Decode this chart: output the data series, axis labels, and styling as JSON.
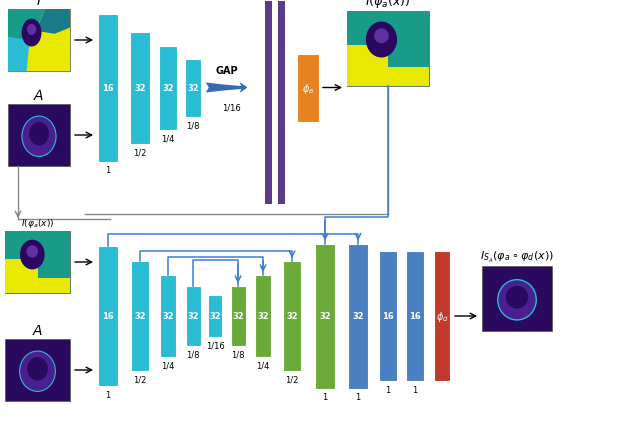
{
  "bg_color": "#ffffff",
  "cyan": "#29bcd3",
  "green": "#6aaa3a",
  "blue_dec": "#4a7fc1",
  "orange": "#e8821e",
  "purple_line": "#5b3a8c",
  "red_phi": "#c0392b",
  "skip_color": "#3a7fd4",
  "gray_line": "#888888",
  "img_yellow": "#e8e800",
  "img_teal": "#1a9b8a",
  "img_cyan": "#29bcd3",
  "img_purple_bg": "#2a0a5e",
  "img_purple_fg": "#4a2090",
  "img_purple_blob": "#2a0860"
}
